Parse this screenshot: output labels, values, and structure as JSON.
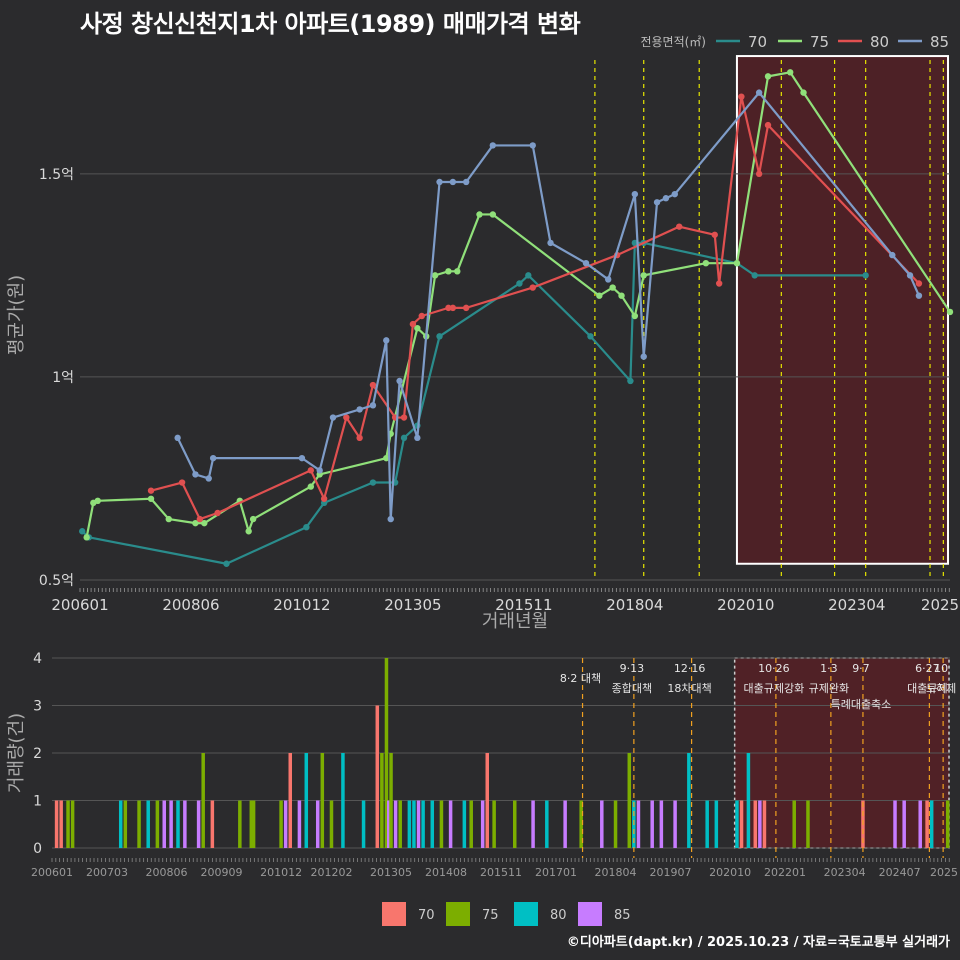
{
  "title": "사정 창신신천지1차 아파트(1989) 매매가격 변화",
  "footer": "©디아파트(dapt.kr) / 2025.10.23 / 자료=국토교통부 실거래가",
  "colors": {
    "bg": "#2b2b2d",
    "grid": "#555555",
    "text": "#d9d9d9",
    "vline": "#e6e600",
    "bar_vline": "#f0a020",
    "highlight_fill": "#5a1f24",
    "highlight_border": "#ffffff"
  },
  "chart_data": [
    {
      "type": "line",
      "title": "사정 창신신천지1차 아파트(1989) 매매가격 변화",
      "xlabel": "거래년월",
      "ylabel": "평균가(원)",
      "xlim": [
        2006.0,
        2025.6
      ],
      "ylim": [
        0.5,
        1.8
      ],
      "x_ticks": [
        2006.0,
        2008.5,
        2011.0,
        2013.5,
        2016.0,
        2018.5,
        2021.0,
        2023.5,
        2026.0
      ],
      "x_tick_labels": [
        "200601",
        "200806",
        "201012",
        "201305",
        "201511",
        "201804",
        "202010",
        "202304",
        "2025"
      ],
      "y_ticks": [
        0.5,
        1.0,
        1.5
      ],
      "y_tick_labels": [
        "0.5억",
        "1억",
        "1.5억"
      ],
      "legend_title": "전용면적(㎡)",
      "legend_position": "top-right",
      "policy_lines": [
        2017.6,
        2018.7,
        2019.95,
        2021.8,
        2023.0,
        2023.7,
        2025.15,
        2025.45
      ],
      "highlight_range": [
        2020.8,
        2025.6
      ],
      "series": [
        {
          "name": "70",
          "color": "#2a8c8c",
          "x": [
            2006.05,
            2006.2,
            2009.3,
            2011.1,
            2011.5,
            2012.6,
            2013.1,
            2013.3,
            2013.6,
            2014.1,
            2015.9,
            2016.1,
            2017.5,
            2018.4,
            2018.5,
            2018.7,
            2020.8,
            2021.2,
            2023.7
          ],
          "y": [
            0.62,
            0.605,
            0.54,
            0.63,
            0.69,
            0.74,
            0.74,
            0.85,
            0.88,
            1.1,
            1.23,
            1.25,
            1.1,
            0.99,
            1.33,
            1.33,
            1.28,
            1.25,
            1.25
          ]
        },
        {
          "name": "75",
          "color": "#90e07a",
          "x": [
            2006.15,
            2006.3,
            2006.4,
            2007.6,
            2008.0,
            2008.6,
            2008.8,
            2009.6,
            2009.8,
            2009.9,
            2011.2,
            2011.4,
            2012.9,
            2013.0,
            2013.6,
            2013.8,
            2014.0,
            2014.3,
            2014.5,
            2015.0,
            2015.3,
            2017.7,
            2018.0,
            2018.2,
            2018.5,
            2018.7,
            2020.1,
            2020.8,
            2021.5,
            2022.0,
            2022.3,
            2025.6
          ],
          "y": [
            0.605,
            0.69,
            0.695,
            0.7,
            0.65,
            0.64,
            0.64,
            0.695,
            0.62,
            0.65,
            0.73,
            0.76,
            0.8,
            0.86,
            1.12,
            1.1,
            1.25,
            1.26,
            1.26,
            1.4,
            1.4,
            1.2,
            1.22,
            1.2,
            1.15,
            1.25,
            1.28,
            1.28,
            1.74,
            1.75,
            1.7,
            1.16
          ]
        },
        {
          "name": "80",
          "color": "#e05050",
          "x": [
            2007.6,
            2008.3,
            2008.7,
            2009.1,
            2011.2,
            2011.5,
            2012.0,
            2012.3,
            2012.6,
            2013.1,
            2013.3,
            2013.5,
            2013.7,
            2014.3,
            2014.4,
            2014.7,
            2016.2,
            2018.1,
            2019.5,
            2020.3,
            2020.4,
            2020.9,
            2021.3,
            2021.5,
            2024.9
          ],
          "y": [
            0.72,
            0.74,
            0.65,
            0.665,
            0.77,
            0.7,
            0.9,
            0.85,
            0.98,
            0.9,
            0.9,
            1.13,
            1.15,
            1.17,
            1.17,
            1.17,
            1.22,
            1.3,
            1.37,
            1.35,
            1.23,
            1.69,
            1.5,
            1.62,
            1.23
          ]
        },
        {
          "name": "85",
          "color": "#7e9cc8",
          "x": [
            2008.2,
            2008.6,
            2008.9,
            2009.0,
            2011.0,
            2011.4,
            2011.7,
            2012.3,
            2012.6,
            2012.9,
            2013.0,
            2013.2,
            2013.6,
            2014.1,
            2014.4,
            2014.7,
            2015.3,
            2016.2,
            2016.6,
            2017.4,
            2017.9,
            2018.5,
            2018.7,
            2019.0,
            2019.2,
            2019.4,
            2021.3,
            2024.3,
            2024.7,
            2024.9
          ],
          "y": [
            0.85,
            0.76,
            0.75,
            0.8,
            0.8,
            0.77,
            0.9,
            0.92,
            0.93,
            1.09,
            0.65,
            0.99,
            0.85,
            1.48,
            1.48,
            1.48,
            1.57,
            1.57,
            1.33,
            1.28,
            1.24,
            1.45,
            1.05,
            1.43,
            1.44,
            1.45,
            1.7,
            1.3,
            1.25,
            1.2
          ]
        }
      ]
    },
    {
      "type": "bar",
      "xlabel": "",
      "ylabel": "거래량(건)",
      "xlim": [
        2006.0,
        2025.6
      ],
      "ylim": [
        0,
        4
      ],
      "y_ticks": [
        0,
        1,
        2,
        3,
        4
      ],
      "x_ticks": [
        2006.0,
        2007.2,
        2008.5,
        2009.7,
        2011.0,
        2012.1,
        2013.4,
        2014.6,
        2015.8,
        2017.0,
        2018.3,
        2019.5,
        2020.8,
        2022.0,
        2023.3,
        2024.5,
        2025.5
      ],
      "x_tick_labels": [
        "200601",
        "200703",
        "200806",
        "200909",
        "201012",
        "201202",
        "201305",
        "201408",
        "201511",
        "201701",
        "201804",
        "201907",
        "202010",
        "202201",
        "202304",
        "202407",
        "2025"
      ],
      "legend": [
        "70",
        "75",
        "80",
        "85"
      ],
      "legend_colors": [
        "#f8766d",
        "#7cae00",
        "#00bfc4",
        "#c77cff"
      ],
      "legend_position": "bottom",
      "highlight_range": [
        2020.9,
        2025.6
      ],
      "policy_lines": [
        {
          "x": 2017.58,
          "label": "8·2 대책",
          "label2": ""
        },
        {
          "x": 2018.7,
          "label": "9·13",
          "label2": "종합대책"
        },
        {
          "x": 2019.96,
          "label": "12·16",
          "label2": "18차대책"
        },
        {
          "x": 2021.8,
          "label": "10·26",
          "label2": "대출규제강화"
        },
        {
          "x": 2023.0,
          "label": "1·3",
          "label2": "규제완화"
        },
        {
          "x": 2023.7,
          "label": "9·7",
          "label2": "특례대출축소"
        },
        {
          "x": 2025.15,
          "label": "6·27",
          "label2": "대출규제"
        },
        {
          "x": 2025.45,
          "label": "10",
          "label2": "토허제"
        }
      ],
      "bars": [
        {
          "x": 2006.1,
          "v": 1,
          "s": 0
        },
        {
          "x": 2006.2,
          "v": 1,
          "s": 0
        },
        {
          "x": 2006.35,
          "v": 1,
          "s": 1
        },
        {
          "x": 2006.45,
          "v": 1,
          "s": 1
        },
        {
          "x": 2007.5,
          "v": 1,
          "s": 2
        },
        {
          "x": 2007.6,
          "v": 1,
          "s": 1
        },
        {
          "x": 2007.9,
          "v": 1,
          "s": 1
        },
        {
          "x": 2008.1,
          "v": 1,
          "s": 2
        },
        {
          "x": 2008.3,
          "v": 1,
          "s": 1
        },
        {
          "x": 2008.45,
          "v": 1,
          "s": 3
        },
        {
          "x": 2008.6,
          "v": 1,
          "s": 3
        },
        {
          "x": 2008.75,
          "v": 1,
          "s": 2
        },
        {
          "x": 2008.9,
          "v": 1,
          "s": 3
        },
        {
          "x": 2009.2,
          "v": 1,
          "s": 3
        },
        {
          "x": 2009.3,
          "v": 2,
          "s": 1
        },
        {
          "x": 2009.5,
          "v": 1,
          "s": 0
        },
        {
          "x": 2010.1,
          "v": 1,
          "s": 1
        },
        {
          "x": 2010.35,
          "v": 1,
          "s": 1
        },
        {
          "x": 2010.4,
          "v": 1,
          "s": 1
        },
        {
          "x": 2011.0,
          "v": 1,
          "s": 1
        },
        {
          "x": 2011.1,
          "v": 1,
          "s": 3
        },
        {
          "x": 2011.2,
          "v": 2,
          "s": 0
        },
        {
          "x": 2011.4,
          "v": 1,
          "s": 3
        },
        {
          "x": 2011.55,
          "v": 2,
          "s": 2
        },
        {
          "x": 2011.8,
          "v": 1,
          "s": 3
        },
        {
          "x": 2011.9,
          "v": 2,
          "s": 1
        },
        {
          "x": 2012.1,
          "v": 1,
          "s": 1
        },
        {
          "x": 2012.35,
          "v": 2,
          "s": 2
        },
        {
          "x": 2012.8,
          "v": 1,
          "s": 2
        },
        {
          "x": 2013.1,
          "v": 3,
          "s": 0
        },
        {
          "x": 2013.2,
          "v": 2,
          "s": 1
        },
        {
          "x": 2013.3,
          "v": 4,
          "s": 1
        },
        {
          "x": 2013.35,
          "v": 1,
          "s": 3
        },
        {
          "x": 2013.4,
          "v": 2,
          "s": 1
        },
        {
          "x": 2013.5,
          "v": 1,
          "s": 3
        },
        {
          "x": 2013.6,
          "v": 1,
          "s": 1
        },
        {
          "x": 2013.8,
          "v": 1,
          "s": 2
        },
        {
          "x": 2013.9,
          "v": 1,
          "s": 2
        },
        {
          "x": 2014.0,
          "v": 1,
          "s": 3
        },
        {
          "x": 2014.1,
          "v": 1,
          "s": 2
        },
        {
          "x": 2014.3,
          "v": 1,
          "s": 2
        },
        {
          "x": 2014.5,
          "v": 1,
          "s": 1
        },
        {
          "x": 2014.7,
          "v": 1,
          "s": 3
        },
        {
          "x": 2015.0,
          "v": 1,
          "s": 2
        },
        {
          "x": 2015.15,
          "v": 1,
          "s": 1
        },
        {
          "x": 2015.4,
          "v": 1,
          "s": 3
        },
        {
          "x": 2015.5,
          "v": 2,
          "s": 0
        },
        {
          "x": 2015.65,
          "v": 1,
          "s": 1
        },
        {
          "x": 2016.1,
          "v": 1,
          "s": 1
        },
        {
          "x": 2016.5,
          "v": 1,
          "s": 3
        },
        {
          "x": 2016.8,
          "v": 1,
          "s": 2
        },
        {
          "x": 2017.2,
          "v": 1,
          "s": 3
        },
        {
          "x": 2017.55,
          "v": 1,
          "s": 1
        },
        {
          "x": 2018.0,
          "v": 1,
          "s": 3
        },
        {
          "x": 2018.3,
          "v": 1,
          "s": 1
        },
        {
          "x": 2018.6,
          "v": 2,
          "s": 1
        },
        {
          "x": 2018.7,
          "v": 1,
          "s": 2
        },
        {
          "x": 2018.8,
          "v": 1,
          "s": 3
        },
        {
          "x": 2019.1,
          "v": 1,
          "s": 3
        },
        {
          "x": 2019.3,
          "v": 1,
          "s": 3
        },
        {
          "x": 2019.6,
          "v": 1,
          "s": 3
        },
        {
          "x": 2019.9,
          "v": 2,
          "s": 2
        },
        {
          "x": 2020.3,
          "v": 1,
          "s": 2
        },
        {
          "x": 2020.5,
          "v": 1,
          "s": 2
        },
        {
          "x": 2020.95,
          "v": 1,
          "s": 2
        },
        {
          "x": 2021.05,
          "v": 1,
          "s": 0
        },
        {
          "x": 2021.2,
          "v": 2,
          "s": 2
        },
        {
          "x": 2021.35,
          "v": 1,
          "s": 0
        },
        {
          "x": 2021.45,
          "v": 1,
          "s": 3
        },
        {
          "x": 2021.55,
          "v": 1,
          "s": 0
        },
        {
          "x": 2022.2,
          "v": 1,
          "s": 1
        },
        {
          "x": 2022.5,
          "v": 1,
          "s": 1
        },
        {
          "x": 2023.7,
          "v": 1,
          "s": 0
        },
        {
          "x": 2024.4,
          "v": 1,
          "s": 3
        },
        {
          "x": 2024.6,
          "v": 1,
          "s": 3
        },
        {
          "x": 2024.95,
          "v": 1,
          "s": 3
        },
        {
          "x": 2025.1,
          "v": 1,
          "s": 0
        },
        {
          "x": 2025.2,
          "v": 1,
          "s": 2
        },
        {
          "x": 2025.55,
          "v": 1,
          "s": 1
        }
      ]
    }
  ]
}
